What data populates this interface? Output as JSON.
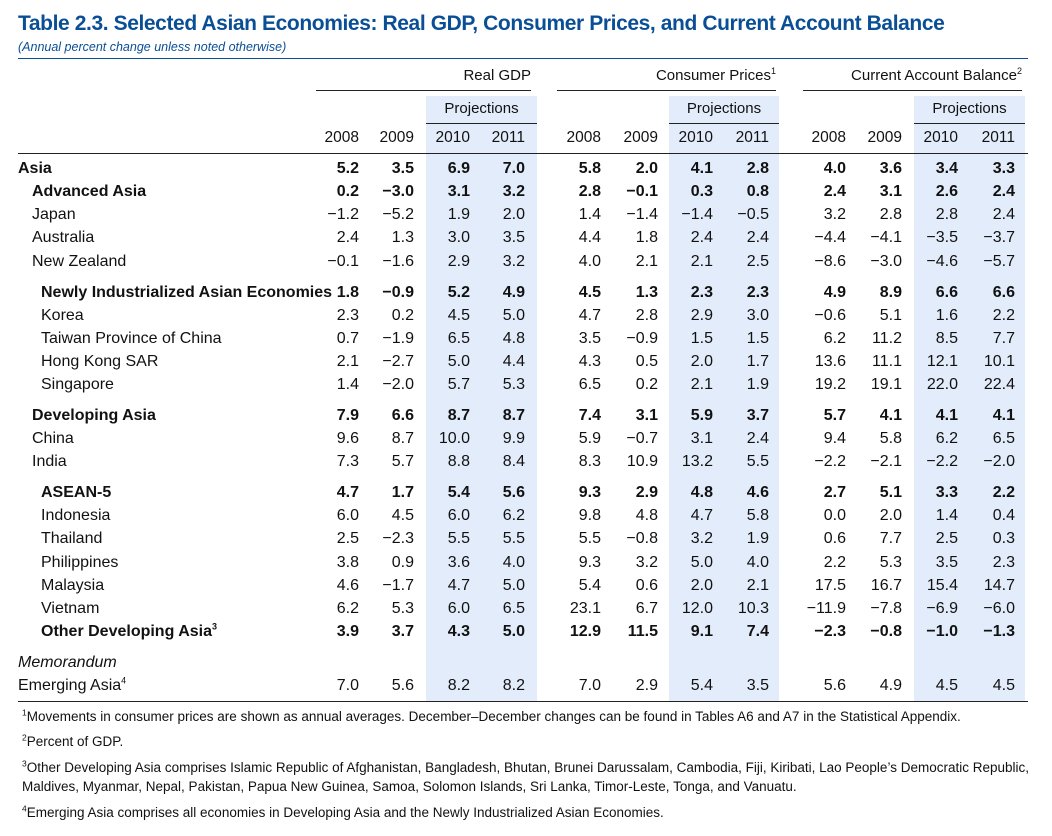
{
  "title": "Table 2.3.  Selected Asian Economies: Real GDP, Consumer Prices, and Current Account Balance",
  "subtitle": "(Annual percent change unless noted otherwise)",
  "groups": [
    {
      "label": "Real GDP",
      "sup": ""
    },
    {
      "label": "Consumer Prices",
      "sup": "1"
    },
    {
      "label": "Current Account Balance",
      "sup": "2"
    }
  ],
  "projections_label": "Projections",
  "years": [
    "2008",
    "2009",
    "2010",
    "2011"
  ],
  "rows": [
    {
      "label": "Asia",
      "sup": "",
      "indent": 0,
      "bold": true,
      "italic": false,
      "values": [
        "5.2",
        "3.5",
        "6.9",
        "7.0",
        "5.8",
        "2.0",
        "4.1",
        "2.8",
        "4.0",
        "3.6",
        "3.4",
        "3.3"
      ]
    },
    {
      "label": "Advanced Asia",
      "sup": "",
      "indent": 1,
      "bold": true,
      "italic": false,
      "values": [
        "0.2",
        "−3.0",
        "3.1",
        "3.2",
        "2.8",
        "−0.1",
        "0.3",
        "0.8",
        "2.4",
        "3.1",
        "2.6",
        "2.4"
      ]
    },
    {
      "label": "Japan",
      "sup": "",
      "indent": 1,
      "bold": false,
      "italic": false,
      "values": [
        "−1.2",
        "−5.2",
        "1.9",
        "2.0",
        "1.4",
        "−1.4",
        "−1.4",
        "−0.5",
        "3.2",
        "2.8",
        "2.8",
        "2.4"
      ]
    },
    {
      "label": "Australia",
      "sup": "",
      "indent": 1,
      "bold": false,
      "italic": false,
      "values": [
        "2.4",
        "1.3",
        "3.0",
        "3.5",
        "4.4",
        "1.8",
        "2.4",
        "2.4",
        "−4.4",
        "−4.1",
        "−3.5",
        "−3.7"
      ]
    },
    {
      "label": "New Zealand",
      "sup": "",
      "indent": 1,
      "bold": false,
      "italic": false,
      "values": [
        "−0.1",
        "−1.6",
        "2.9",
        "3.2",
        "4.0",
        "2.1",
        "2.1",
        "2.5",
        "−8.6",
        "−3.0",
        "−4.6",
        "−5.7"
      ]
    },
    {
      "label": "Newly Industrialized Asian Economies",
      "sup": "",
      "indent": 2,
      "bold": true,
      "italic": false,
      "values": [
        "1.8",
        "−0.9",
        "5.2",
        "4.9",
        "4.5",
        "1.3",
        "2.3",
        "2.3",
        "4.9",
        "8.9",
        "6.6",
        "6.6"
      ]
    },
    {
      "label": "Korea",
      "sup": "",
      "indent": 2,
      "bold": false,
      "italic": false,
      "values": [
        "2.3",
        "0.2",
        "4.5",
        "5.0",
        "4.7",
        "2.8",
        "2.9",
        "3.0",
        "−0.6",
        "5.1",
        "1.6",
        "2.2"
      ]
    },
    {
      "label": "Taiwan Province of China",
      "sup": "",
      "indent": 2,
      "bold": false,
      "italic": false,
      "values": [
        "0.7",
        "−1.9",
        "6.5",
        "4.8",
        "3.5",
        "−0.9",
        "1.5",
        "1.5",
        "6.2",
        "11.2",
        "8.5",
        "7.7"
      ]
    },
    {
      "label": "Hong Kong SAR",
      "sup": "",
      "indent": 2,
      "bold": false,
      "italic": false,
      "values": [
        "2.1",
        "−2.7",
        "5.0",
        "4.4",
        "4.3",
        "0.5",
        "2.0",
        "1.7",
        "13.6",
        "11.1",
        "12.1",
        "10.1"
      ]
    },
    {
      "label": "Singapore",
      "sup": "",
      "indent": 2,
      "bold": false,
      "italic": false,
      "values": [
        "1.4",
        "−2.0",
        "5.7",
        "5.3",
        "6.5",
        "0.2",
        "2.1",
        "1.9",
        "19.2",
        "19.1",
        "22.0",
        "22.4"
      ]
    },
    {
      "label": "Developing Asia",
      "sup": "",
      "indent": 1,
      "bold": true,
      "italic": false,
      "values": [
        "7.9",
        "6.6",
        "8.7",
        "8.7",
        "7.4",
        "3.1",
        "5.9",
        "3.7",
        "5.7",
        "4.1",
        "4.1",
        "4.1"
      ]
    },
    {
      "label": "China",
      "sup": "",
      "indent": 1,
      "bold": false,
      "italic": false,
      "values": [
        "9.6",
        "8.7",
        "10.0",
        "9.9",
        "5.9",
        "−0.7",
        "3.1",
        "2.4",
        "9.4",
        "5.8",
        "6.2",
        "6.5"
      ]
    },
    {
      "label": "India",
      "sup": "",
      "indent": 1,
      "bold": false,
      "italic": false,
      "values": [
        "7.3",
        "5.7",
        "8.8",
        "8.4",
        "8.3",
        "10.9",
        "13.2",
        "5.5",
        "−2.2",
        "−2.1",
        "−2.2",
        "−2.0"
      ]
    },
    {
      "label": "ASEAN-5",
      "sup": "",
      "indent": 2,
      "bold": true,
      "italic": false,
      "values": [
        "4.7",
        "1.7",
        "5.4",
        "5.6",
        "9.3",
        "2.9",
        "4.8",
        "4.6",
        "2.7",
        "5.1",
        "3.3",
        "2.2"
      ]
    },
    {
      "label": "Indonesia",
      "sup": "",
      "indent": 2,
      "bold": false,
      "italic": false,
      "values": [
        "6.0",
        "4.5",
        "6.0",
        "6.2",
        "9.8",
        "4.8",
        "4.7",
        "5.8",
        "0.0",
        "2.0",
        "1.4",
        "0.4"
      ]
    },
    {
      "label": "Thailand",
      "sup": "",
      "indent": 2,
      "bold": false,
      "italic": false,
      "values": [
        "2.5",
        "−2.3",
        "5.5",
        "5.5",
        "5.5",
        "−0.8",
        "3.2",
        "1.9",
        "0.6",
        "7.7",
        "2.5",
        "0.3"
      ]
    },
    {
      "label": "Philippines",
      "sup": "",
      "indent": 2,
      "bold": false,
      "italic": false,
      "values": [
        "3.8",
        "0.9",
        "3.6",
        "4.0",
        "9.3",
        "3.2",
        "5.0",
        "4.0",
        "2.2",
        "5.3",
        "3.5",
        "2.3"
      ]
    },
    {
      "label": "Malaysia",
      "sup": "",
      "indent": 2,
      "bold": false,
      "italic": false,
      "values": [
        "4.6",
        "−1.7",
        "4.7",
        "5.0",
        "5.4",
        "0.6",
        "2.0",
        "2.1",
        "17.5",
        "16.7",
        "15.4",
        "14.7"
      ]
    },
    {
      "label": "Vietnam",
      "sup": "",
      "indent": 2,
      "bold": false,
      "italic": false,
      "values": [
        "6.2",
        "5.3",
        "6.0",
        "6.5",
        "23.1",
        "6.7",
        "12.0",
        "10.3",
        "−11.9",
        "−7.8",
        "−6.9",
        "−6.0"
      ]
    },
    {
      "label": "Other Developing Asia",
      "sup": "3",
      "indent": 2,
      "bold": true,
      "italic": false,
      "values": [
        "3.9",
        "3.7",
        "4.3",
        "5.0",
        "12.9",
        "11.5",
        "9.1",
        "7.4",
        "−2.3",
        "−0.8",
        "−1.0",
        "−1.3"
      ]
    },
    {
      "label": "Memorandum",
      "sup": "",
      "indent": 0,
      "bold": false,
      "italic": true,
      "values": []
    },
    {
      "label": "Emerging Asia",
      "sup": "4",
      "indent": 0,
      "bold": false,
      "italic": false,
      "values": [
        "7.0",
        "5.6",
        "8.2",
        "8.2",
        "7.0",
        "2.9",
        "5.4",
        "3.5",
        "5.6",
        "4.9",
        "4.5",
        "4.5"
      ]
    }
  ],
  "footnotes": [
    {
      "sup": "1",
      "text": "Movements in consumer prices are shown as annual averages. December–December changes can be found in Tables A6 and A7 in the Statistical Appendix."
    },
    {
      "sup": "2",
      "text": "Percent of GDP."
    },
    {
      "sup": "3",
      "text": "Other Developing Asia comprises Islamic Republic of Afghanistan, Bangladesh, Bhutan, Brunei Darussalam, Cambodia, Fiji, Kiribati, Lao People’s Democratic Republic,"
    },
    {
      "sup": "",
      "text": "Maldives, Myanmar, Nepal, Pakistan, Papua New Guinea, Samoa, Solomon Islands, Sri Lanka, Timor-Leste, Tonga, and Vanuatu."
    },
    {
      "sup": "4",
      "text": "Emerging Asia comprises all economies in Developing Asia and the Newly Industrialized Asian Economies."
    }
  ],
  "colors": {
    "title": "#0a4f96",
    "projection_shade": "#e3ecfa"
  }
}
